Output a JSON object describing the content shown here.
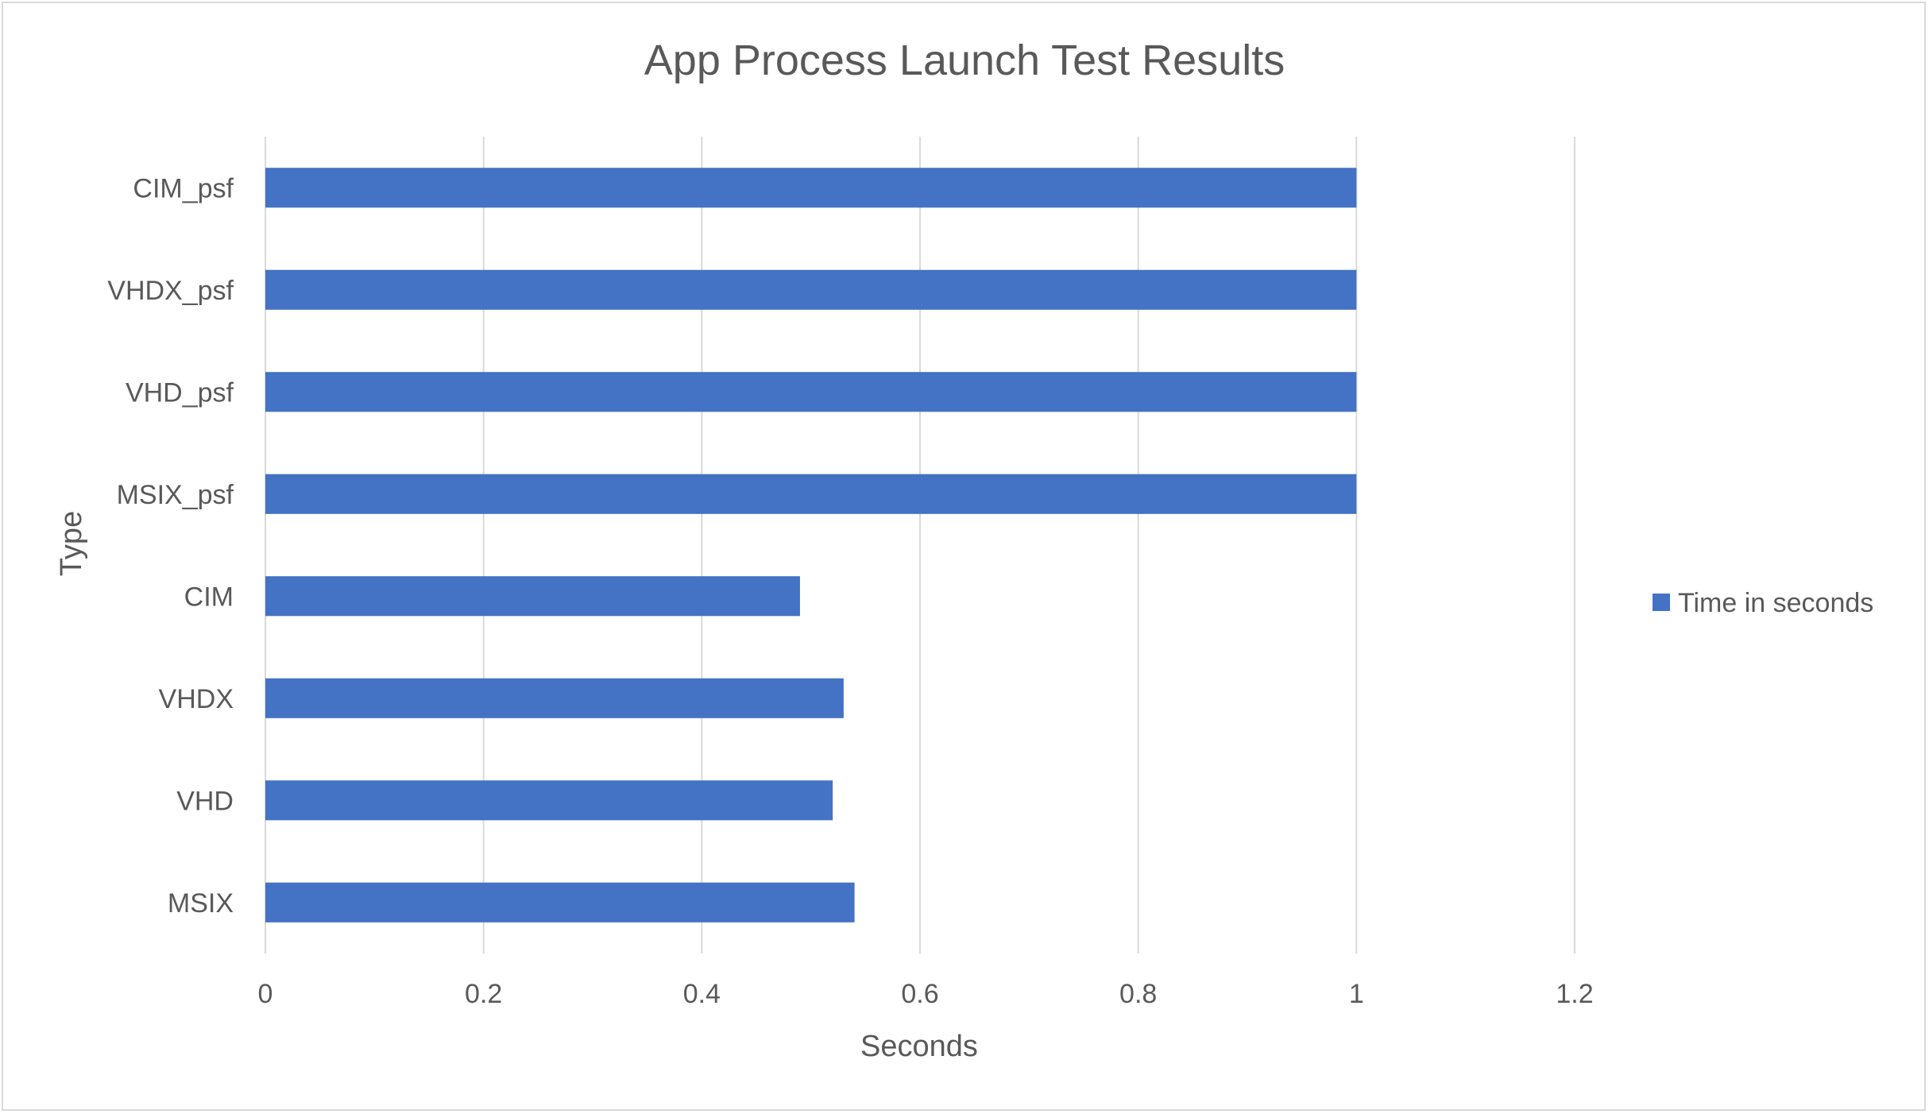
{
  "chart_data": {
    "type": "bar",
    "orientation": "horizontal",
    "title": "App Process Launch Test Results",
    "xlabel": "Seconds",
    "ylabel": "Type",
    "categories": [
      "CIM_psf",
      "VHDX_psf",
      "VHD_psf",
      "MSIX_psf",
      "CIM",
      "VHDX",
      "VHD",
      "MSIX"
    ],
    "series": [
      {
        "name": "Time in seconds",
        "color": "#4472c4",
        "values": [
          1.0,
          1.0,
          1.0,
          1.0,
          0.49,
          0.53,
          0.52,
          0.54
        ]
      }
    ],
    "xlim": [
      0,
      1.2
    ],
    "xticks": [
      "0",
      "0.2",
      "0.4",
      "0.6",
      "0.8",
      "1",
      "1.2"
    ],
    "grid": true,
    "legend_position": "right"
  }
}
